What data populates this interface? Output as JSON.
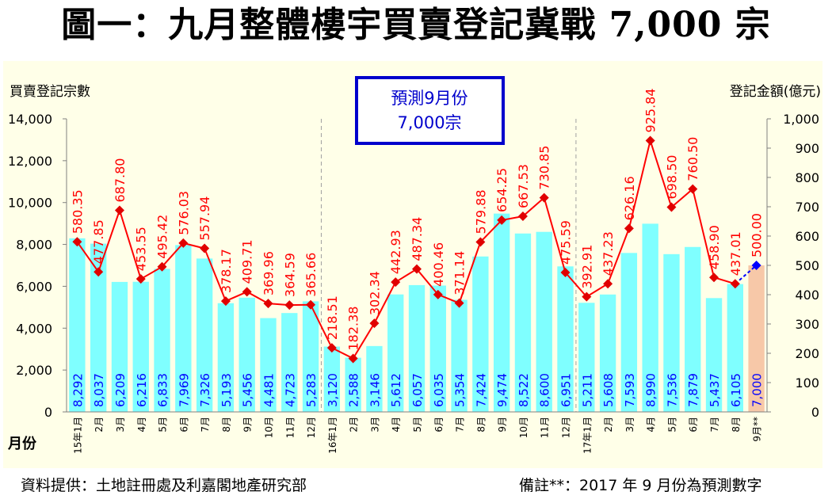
{
  "title": "圖一：九月整體樓宇買賣登記冀戰 7,000 宗",
  "footer": {
    "source": "資料提供：土地註冊處及利嘉閣地產研究部",
    "note": "備註**：2017 年 9 月份為預測數字"
  },
  "forecast_box": {
    "line1": "預測9月份",
    "line2": "7,000宗"
  },
  "colors": {
    "bar": "#7fffff",
    "forecast_bar": "#f7c8a8",
    "line": "#ff0000",
    "marker": "#e00000",
    "forecast_marker": "#0000ff",
    "bar_label": "#0000ff",
    "line_label": "#ff0000",
    "plot_bg": "#ffffe8",
    "box_border": "#0000cc",
    "box_text": "#0000cc"
  },
  "chart_data": {
    "type": "bar+line",
    "title": "圖一：九月整體樓宇買賣登記冀戰 7,000 宗",
    "left_axis": {
      "label": "買賣登記宗數",
      "range": [
        0,
        14000
      ],
      "ticks": [
        "0",
        "2,000",
        "4,000",
        "6,000",
        "8,000",
        "10,000",
        "12,000",
        "14,000"
      ]
    },
    "right_axis": {
      "label": "登記金額(億元)",
      "range": [
        0,
        1000
      ],
      "ticks": [
        "0",
        "100",
        "200",
        "300",
        "400",
        "500",
        "600",
        "700",
        "800",
        "900",
        "1,000"
      ]
    },
    "x_axis_label": "月份",
    "categories": [
      "15年1月",
      "2月",
      "3月",
      "4月",
      "5月",
      "6月",
      "7月",
      "8月",
      "9月",
      "10月",
      "11月",
      "12月",
      "16年1月",
      "2月",
      "3月",
      "4月",
      "5月",
      "6月",
      "7月",
      "8月",
      "9月",
      "10月",
      "11月",
      "12月",
      "17年1月",
      "2月",
      "3月",
      "4月",
      "5月",
      "6月",
      "7月",
      "8月",
      "9月**"
    ],
    "series": [
      {
        "name": "買賣登記宗數",
        "kind": "bar",
        "axis": "left",
        "values": [
          8292,
          8037,
          6209,
          6216,
          6833,
          7969,
          7326,
          5193,
          5456,
          4481,
          4723,
          5283,
          3120,
          2588,
          3146,
          5612,
          6057,
          6035,
          5354,
          7424,
          9474,
          8522,
          8600,
          6951,
          5211,
          5608,
          7593,
          8990,
          7536,
          7879,
          5437,
          6105,
          7000
        ],
        "labels": [
          "8,292",
          "8,037",
          "6,209",
          "6,216",
          "6,833",
          "7,969",
          "7,326",
          "5,193",
          "5,456",
          "4,481",
          "4,723",
          "5,283",
          "3,120",
          "2,588",
          "3,146",
          "5,612",
          "6,057",
          "6,035",
          "5,354",
          "7,424",
          "9,474",
          "8,522",
          "8,600",
          "6,951",
          "5,211",
          "5,608",
          "7,593",
          "8,990",
          "7,536",
          "7,879",
          "5,437",
          "6,105",
          "7,000"
        ]
      },
      {
        "name": "登記金額(億元)",
        "kind": "line",
        "axis": "right",
        "values": [
          580.35,
          477.85,
          687.8,
          453.55,
          495.42,
          576.03,
          557.94,
          378.17,
          409.71,
          369.96,
          364.59,
          365.66,
          218.51,
          182.38,
          302.34,
          442.93,
          487.34,
          400.46,
          371.14,
          579.88,
          654.25,
          667.53,
          730.85,
          475.59,
          392.91,
          437.23,
          626.16,
          925.84,
          698.5,
          760.5,
          458.9,
          437.01,
          500.0
        ],
        "labels": [
          "580.35",
          "477.85",
          "687.80",
          "453.55",
          "495.42",
          "576.03",
          "557.94",
          "378.17",
          "409.71",
          "369.96",
          "364.59",
          "365.66",
          "218.51",
          "182.38",
          "302.34",
          "442.93",
          "487.34",
          "400.46",
          "371.14",
          "579.88",
          "654.25",
          "667.53",
          "730.85",
          "475.59",
          "392.91",
          "437.23",
          "626.16",
          "925.84",
          "698.50",
          "760.50",
          "458.90",
          "437.01",
          "500.00"
        ]
      }
    ],
    "forecast_index": 32,
    "year_dividers_after": [
      11,
      23
    ],
    "grid": false,
    "legend": "none"
  }
}
